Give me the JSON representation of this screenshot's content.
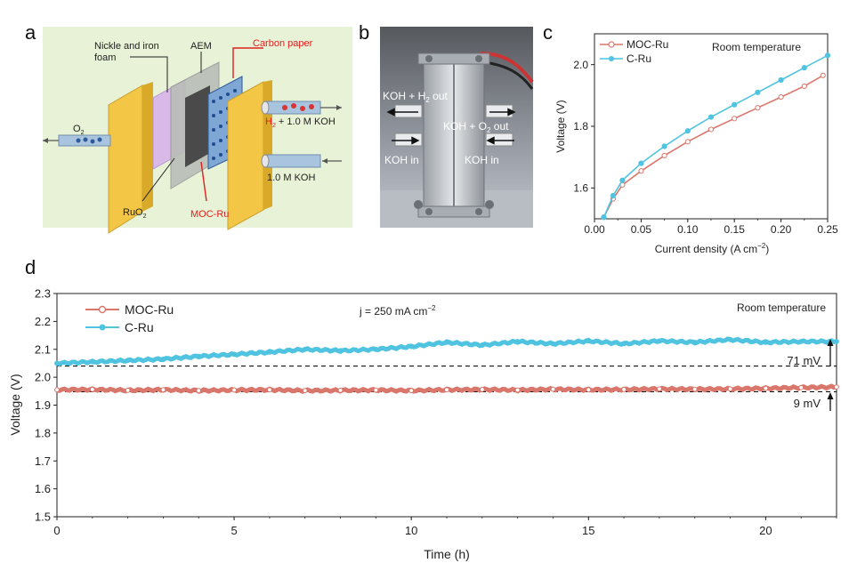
{
  "panel_letters": {
    "a": "a",
    "b": "b",
    "c": "c",
    "d": "d"
  },
  "panel_a": {
    "labels": {
      "nickle": "Nickle and iron",
      "foam": "foam",
      "aem": "AEM",
      "carbon_paper": "Carbon paper",
      "o2": "O",
      "o2_sub": "2",
      "h2": "H",
      "h2_sub": "2",
      "h2_rest": " + 1.0 M KOH",
      "koh": "1.0 M KOH",
      "ruo2": "RuO",
      "ruo2_sub": "2",
      "mocru": "MOC-Ru"
    },
    "colors": {
      "background": "#e8f2d6",
      "plate": "#f0c53c",
      "red_label": "#e02020",
      "catalyst": "#7ea7d6"
    }
  },
  "panel_b": {
    "labels": {
      "koh_h2_out_a": "KOH + H",
      "koh_h2_out_sub": "2",
      "koh_h2_out_b": " out",
      "koh_o2_out_a": "KOH + O",
      "koh_o2_out_sub": "2",
      "koh_o2_out_b": " out",
      "koh_in_left": "KOH in",
      "koh_in_right": "KOH in"
    }
  },
  "chart_data": [
    {
      "id": "c",
      "type": "line",
      "xlabel": "Current density (A cm",
      "xlabel_sup": "−2",
      "xlabel_end": ")",
      "ylabel": "Voltage (V)",
      "xlim": [
        0,
        0.25
      ],
      "ylim": [
        1.5,
        2.1
      ],
      "x_ticks": [
        0.0,
        0.05,
        0.1,
        0.15,
        0.2,
        0.25
      ],
      "x_tick_labels": [
        "0.00",
        "0.05",
        "0.10",
        "0.15",
        "0.20",
        "0.25"
      ],
      "y_ticks": [
        1.6,
        1.8,
        2.0
      ],
      "y_tick_labels": [
        "1.6",
        "1.8",
        "2.0"
      ],
      "annotation": "Room temperature",
      "legend_position": "top-left",
      "series": [
        {
          "name": "MOC-Ru",
          "color": "#d9776c",
          "marker": "open-circle",
          "x": [
            0.01,
            0.02,
            0.03,
            0.05,
            0.075,
            0.1,
            0.125,
            0.15,
            0.175,
            0.2,
            0.225,
            0.245
          ],
          "y": [
            1.505,
            1.565,
            1.61,
            1.655,
            1.705,
            1.75,
            1.79,
            1.825,
            1.86,
            1.895,
            1.93,
            1.965
          ]
        },
        {
          "name": "C-Ru",
          "color": "#4fc3e0",
          "marker": "filled-circle",
          "x": [
            0.01,
            0.02,
            0.03,
            0.05,
            0.075,
            0.1,
            0.125,
            0.15,
            0.175,
            0.2,
            0.225,
            0.25
          ],
          "y": [
            1.505,
            1.575,
            1.625,
            1.68,
            1.735,
            1.785,
            1.83,
            1.87,
            1.91,
            1.95,
            1.99,
            2.03
          ]
        }
      ]
    },
    {
      "id": "d",
      "type": "line",
      "xlabel": "Time (h)",
      "ylabel": "Voltage (V)",
      "xlim": [
        0,
        22
      ],
      "ylim": [
        1.5,
        2.3
      ],
      "x_ticks": [
        0,
        5,
        10,
        15,
        20
      ],
      "x_tick_labels": [
        "0",
        "5",
        "10",
        "15",
        "20"
      ],
      "y_ticks": [
        1.5,
        1.6,
        1.7,
        1.8,
        1.9,
        2.0,
        2.1,
        2.2,
        2.3
      ],
      "y_tick_labels": [
        "1.5",
        "1.6",
        "1.7",
        "1.8",
        "1.9",
        "2.0",
        "2.1",
        "2.2",
        "2.3"
      ],
      "annotation_j": "j = 250 mA cm",
      "annotation_j_sup": "−2",
      "annotation_temp": "Room temperature",
      "legend_position": "top-left",
      "reference_lines": [
        {
          "y": 2.04
        },
        {
          "y": 1.948
        }
      ],
      "delta_labels": [
        "71  mV",
        "9  mV"
      ],
      "series": [
        {
          "name": "MOC-Ru",
          "color": "#d9776c",
          "marker": "open-circle",
          "x": [
            0,
            1,
            2,
            3,
            4,
            5,
            6,
            7,
            8,
            9,
            10,
            11,
            12,
            13,
            14,
            15,
            16,
            17,
            18,
            19,
            20,
            21,
            22
          ],
          "y": [
            1.955,
            1.956,
            1.953,
            1.955,
            1.952,
            1.954,
            1.955,
            1.952,
            1.953,
            1.954,
            1.952,
            1.955,
            1.956,
            1.954,
            1.957,
            1.955,
            1.956,
            1.958,
            1.957,
            1.958,
            1.96,
            1.963,
            1.965
          ]
        },
        {
          "name": "C-Ru",
          "color": "#4fc3e0",
          "marker": "filled-circle",
          "x": [
            0,
            1,
            2,
            3,
            4,
            5,
            6,
            7,
            8,
            9,
            10,
            11,
            12,
            13,
            14,
            15,
            16,
            17,
            18,
            19,
            20,
            21,
            22
          ],
          "y": [
            2.05,
            2.055,
            2.06,
            2.065,
            2.075,
            2.082,
            2.09,
            2.1,
            2.095,
            2.1,
            2.11,
            2.125,
            2.115,
            2.128,
            2.12,
            2.13,
            2.12,
            2.13,
            2.125,
            2.135,
            2.125,
            2.128,
            2.128
          ]
        }
      ]
    }
  ]
}
